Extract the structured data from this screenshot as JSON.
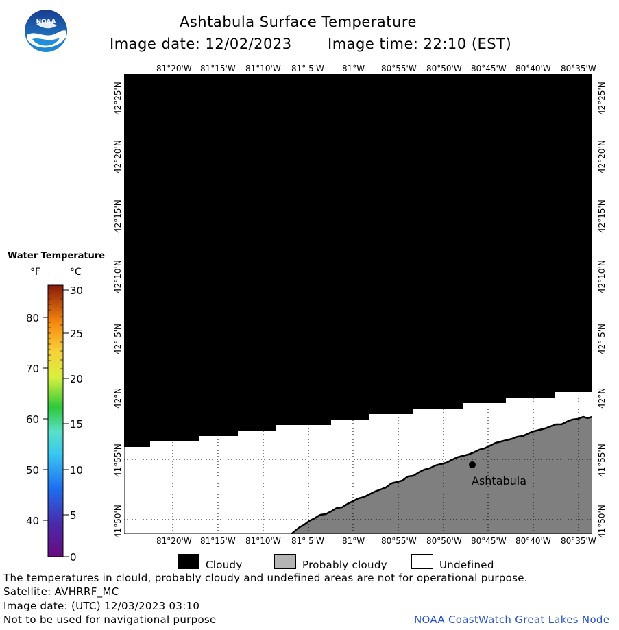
{
  "header": {
    "title": "Ashtabula Surface Temperature",
    "image_date": "Image date: 12/02/2023",
    "image_time": "Image time: 22:10 (EST)"
  },
  "logo": {
    "text": "NOAA"
  },
  "map": {
    "lon_ticks": [
      "81°20'W",
      "81°15'W",
      "81°10'W",
      "81° 5'W",
      "81°W",
      "80°55'W",
      "80°50'W",
      "80°45'W",
      "80°40'W",
      "80°35'W"
    ],
    "lat_ticks": [
      "42°25'N",
      "42°20'N",
      "42°15'N",
      "42°10'N",
      "42° 5'N",
      "42°N",
      "41°55'N",
      "41°50'N"
    ],
    "place_label": "Ashtabula"
  },
  "colorbar": {
    "title": "Water Temperature",
    "unit_f": "°F",
    "unit_c": "°C",
    "f_ticks": [
      "80",
      "70",
      "60",
      "50",
      "40"
    ],
    "c_ticks": [
      "30",
      "25",
      "20",
      "15",
      "10",
      "5",
      "0"
    ]
  },
  "legend": {
    "cloudy": "Cloudy",
    "probably_cloudy": "Probably cloudy",
    "undefined": "Undefined",
    "colors": {
      "cloudy": "#000000",
      "probably_cloudy": "#b4b4b4",
      "undefined": "#ffffff",
      "land": "#7f7f7f"
    }
  },
  "footer": {
    "line1": "The temperatures in clould, probably cloudy and undefined areas are not for operational purpose.",
    "line2": "Satellite: AVHRRF_MC",
    "line3": "Image date: (UTC) 12/03/2023  03:10",
    "line4": "Not to be used for navigational purpose",
    "credit": "NOAA CoastWatch Great Lakes Node"
  }
}
